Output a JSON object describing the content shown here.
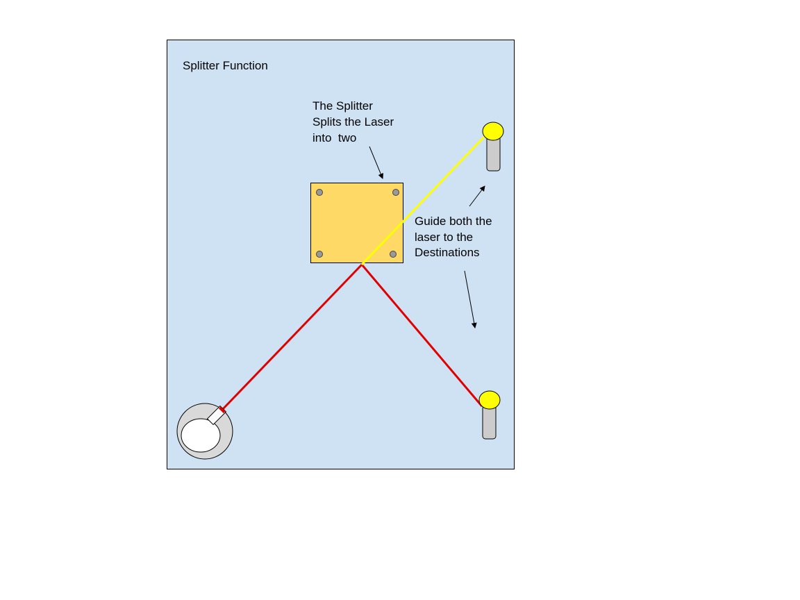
{
  "title": "Splitter Function",
  "splitter_note": {
    "lines": [
      "The Splitter",
      "Splits the Laser",
      "into  two"
    ]
  },
  "guide_note": {
    "lines": [
      "Guide both the",
      "laser to the",
      "Destinations"
    ]
  },
  "colors": {
    "board_background": "#cfe2f3",
    "splitter_fill": "#ffd966",
    "laser_red": "#e00000",
    "laser_yellow": "#ffff00",
    "target_yellow": "#ffff00",
    "post_gray": "#cccccc",
    "source_ring": "#d9d9d9",
    "screw_gray": "#999999"
  },
  "icons": {
    "laser_source": "laser-emitter-icon",
    "destination": "target-post-icon",
    "splitter": "beam-splitter-icon"
  }
}
